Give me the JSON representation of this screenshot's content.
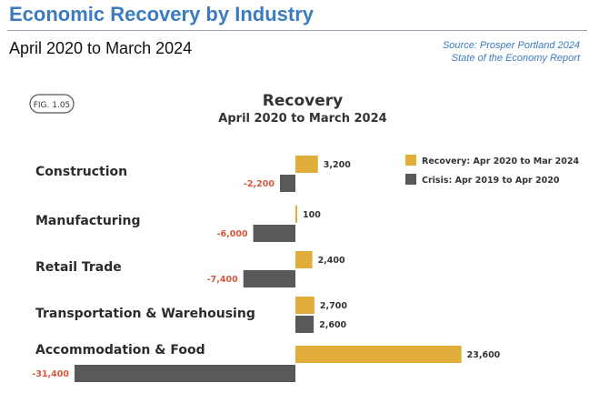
{
  "page": {
    "title": "Economic Recovery by Industry",
    "subtitle": "April 2020 to March 2024",
    "source_line1": "Source: Prosper Portland 2024",
    "source_line2": "State of the Economy Report"
  },
  "chart_data": {
    "type": "bar",
    "orientation": "horizontal",
    "figure_label": "FIG. 1.05",
    "title": "Recovery",
    "subtitle": "April 2020 to March 2024",
    "categories": [
      "Construction",
      "Manufacturing",
      "Retail Trade",
      "Transportation & Warehousing",
      "Accommodation & Food"
    ],
    "series": [
      {
        "name": "Recovery: Apr 2020 to Mar 2024",
        "color": "#e0ad3b",
        "values": [
          3200,
          100,
          2400,
          2700,
          23600
        ],
        "labels": [
          "3,200",
          "100",
          "2,400",
          "2,700",
          "23,600"
        ]
      },
      {
        "name": "Crisis: Apr 2019 to Apr 2020",
        "color": "#595959",
        "values": [
          -2200,
          -6000,
          -7400,
          2600,
          -31400
        ],
        "labels": [
          "-2,200",
          "-6,000",
          "-7,400",
          "2,600",
          "-31,400"
        ]
      }
    ],
    "negative_label_color": "#d9573d",
    "legend_position": "top-right",
    "grid": false
  }
}
